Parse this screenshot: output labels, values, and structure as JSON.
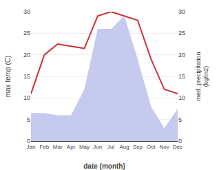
{
  "chart_data": {
    "type": "line",
    "categories": [
      "Jan",
      "Feb",
      "Mar",
      "Apr",
      "May",
      "Jun",
      "Jul",
      "Aug",
      "Sep",
      "Oct",
      "Nov",
      "Dec"
    ],
    "series": [
      {
        "type": "area",
        "color": "#c5caee",
        "axis": "y2",
        "values": [
          6.5,
          6.5,
          6.0,
          6.0,
          12,
          26,
          26,
          29,
          19,
          8,
          3,
          7.5
        ]
      },
      {
        "type": "line",
        "color": "#cc3333",
        "values": [
          11,
          20,
          22.5,
          22,
          21.5,
          29,
          30,
          29,
          28,
          19,
          12,
          11
        ]
      }
    ],
    "xlabel": "date (month)",
    "ylabel": "max temp (C)",
    "y2label": "med. precipitation\n(kg/m2)",
    "ylim": [
      0,
      30
    ],
    "yticks": [
      0,
      5,
      10,
      15,
      20,
      25,
      30
    ],
    "y2lim": [
      0,
      30
    ],
    "y2ticks": [
      0,
      5,
      10,
      15,
      20,
      25,
      30
    ],
    "grid": true
  }
}
